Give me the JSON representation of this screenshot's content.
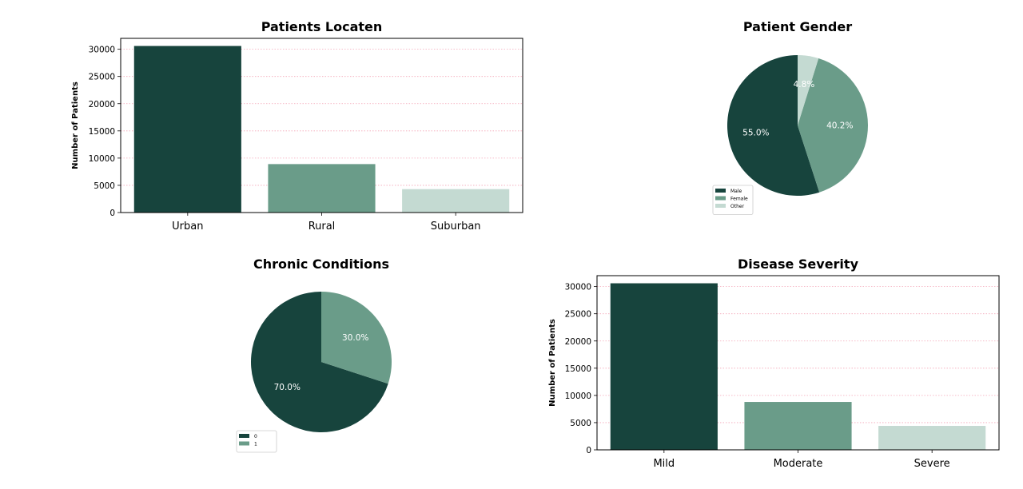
{
  "colors": {
    "dark": "#17443d",
    "mid": "#6a9c89",
    "light": "#c4dad2",
    "grid": "#f4a6b8",
    "pie_text": "#ffffff"
  },
  "chart_data": [
    {
      "type": "bar",
      "title": "Patients Locaten",
      "xlabel": "",
      "ylabel": "Number of Patients",
      "categories": [
        "Urban",
        "Rural",
        "Suburban"
      ],
      "values": [
        30600,
        8900,
        4300
      ],
      "ylim": [
        0,
        32000
      ],
      "yticks": [
        0,
        5000,
        10000,
        15000,
        20000,
        25000,
        30000
      ],
      "grid": "horizontal dotted"
    },
    {
      "type": "pie",
      "title": "Patient Gender",
      "labels": [
        "Male",
        "Female",
        "Other"
      ],
      "values": [
        55.0,
        40.2,
        4.8
      ],
      "value_labels": [
        "55.0%",
        "40.2%",
        "4.8%"
      ],
      "legend": "bottom-left"
    },
    {
      "type": "pie",
      "title": "Chronic Conditions",
      "labels": [
        "0",
        "1"
      ],
      "values": [
        70.0,
        30.0
      ],
      "value_labels": [
        "70.0%",
        "30.0%"
      ],
      "legend": "bottom-left"
    },
    {
      "type": "bar",
      "title": "Disease Severity",
      "xlabel": "",
      "ylabel": "Number of Patients",
      "categories": [
        "Mild",
        "Moderate",
        "Severe"
      ],
      "values": [
        30600,
        8800,
        4400
      ],
      "ylim": [
        0,
        32000
      ],
      "yticks": [
        0,
        5000,
        10000,
        15000,
        20000,
        25000,
        30000
      ],
      "grid": "horizontal dotted"
    }
  ]
}
